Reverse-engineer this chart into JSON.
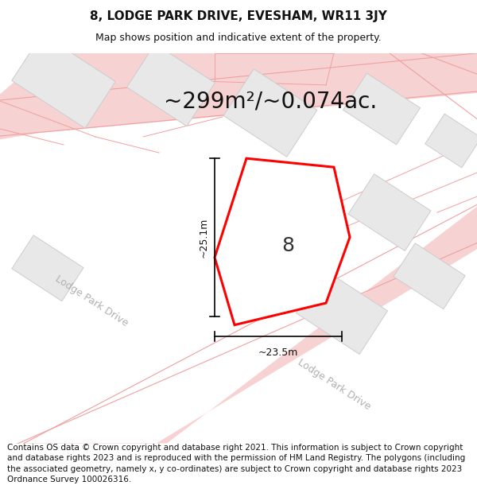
{
  "title": "8, LODGE PARK DRIVE, EVESHAM, WR11 3JY",
  "subtitle": "Map shows position and indicative extent of the property.",
  "area_text": "~299m²/~0.074ac.",
  "label_8": "8",
  "dim_height": "~25.1m",
  "dim_width": "~23.5m",
  "footer": "Contains OS data © Crown copyright and database right 2021. This information is subject to Crown copyright and database rights 2023 and is reproduced with the permission of HM Land Registry. The polygons (including the associated geometry, namely x, y co-ordinates) are subject to Crown copyright and database rights 2023 Ordnance Survey 100026316.",
  "bg_color": "#ffffff",
  "map_bg": "#ffffff",
  "road_color": "#f5c0c0",
  "road_line_color": "#f0a0a0",
  "building_color": "#e8e8e8",
  "building_edge": "#cccccc",
  "plot_color": "#ff0000",
  "plot_fill": "#ffffff",
  "dim_line_color": "#000000",
  "road_label_color": "#b0b0b0",
  "title_fontsize": 11,
  "subtitle_fontsize": 9,
  "area_fontsize": 20,
  "label_fontsize": 18,
  "dim_fontsize": 9,
  "road_label_fontsize": 9,
  "footer_fontsize": 7.5
}
